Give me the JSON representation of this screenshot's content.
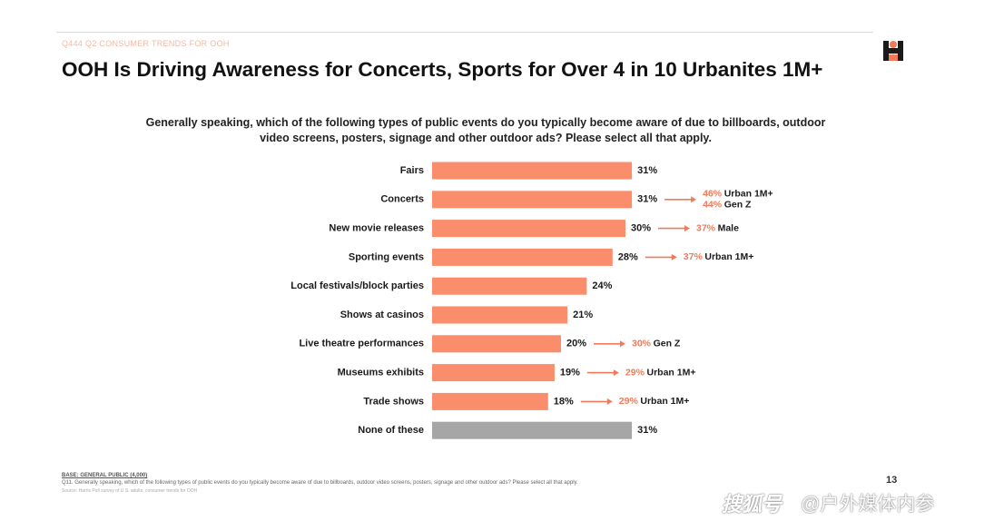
{
  "header": {
    "kicker": "Q444 Q2 CONSUMER TRENDS FOR OOH",
    "title": "OOH Is Driving Awareness for Concerts, Sports for Over 4 in 10 Urbanites 1M+"
  },
  "question": "Generally speaking, which of the following types of public events do you typically become aware of due to billboards, outdoor video screens, posters, signage and other outdoor ads? Please select all that apply.",
  "colors": {
    "bar": "#f98d6c",
    "none_bar": "#a6a6a6",
    "callout": "#f07b59",
    "logo_dark": "#1a1a1a",
    "logo_accent": "#f07b59"
  },
  "chart_data": {
    "type": "bar",
    "orientation": "horizontal",
    "categories": [
      "Fairs",
      "Concerts",
      "New movie releases",
      "Sporting events",
      "Local festivals/block parties",
      "Shows at casinos",
      "Live theatre performances",
      "Museums exhibits",
      "Trade shows",
      "None of these"
    ],
    "values": [
      31,
      31,
      30,
      28,
      24,
      21,
      20,
      19,
      18,
      31
    ],
    "value_labels": [
      "31%",
      "31%",
      "30%",
      "28%",
      "24%",
      "21%",
      "20%",
      "19%",
      "18%",
      "31%"
    ],
    "unit": "%",
    "xlim": [
      0,
      60
    ],
    "grid": false,
    "callouts": [
      {
        "category": "Concerts",
        "items": [
          {
            "value": "46%",
            "group": "Urban 1M+"
          },
          {
            "value": "44%",
            "group": "Gen Z"
          }
        ]
      },
      {
        "category": "New movie releases",
        "items": [
          {
            "value": "37%",
            "group": "Male"
          }
        ]
      },
      {
        "category": "Sporting events",
        "items": [
          {
            "value": "37%",
            "group": "Urban 1M+"
          }
        ]
      },
      {
        "category": "Live theatre performances",
        "items": [
          {
            "value": "30%",
            "group": "Gen Z"
          }
        ]
      },
      {
        "category": "Museums exhibits",
        "items": [
          {
            "value": "29%",
            "group": "Urban 1M+"
          }
        ]
      },
      {
        "category": "Trade shows",
        "items": [
          {
            "value": "29%",
            "group": "Urban 1M+"
          }
        ]
      }
    ]
  },
  "footer": {
    "source_title": "BASE: GENERAL PUBLIC (4,000)",
    "source_note": "Q11. Generally speaking, which of the following types of public events do you typically become aware of due to billboards, outdoor video screens, posters, signage and other outdoor ads? Please select all that apply.",
    "source_note2": "Source: Harris Poll survey of U.S. adults, consumer trends for OOH",
    "page_number": "13"
  },
  "watermark": {
    "brand": "搜狐号",
    "handle": "@户外媒体内参"
  }
}
